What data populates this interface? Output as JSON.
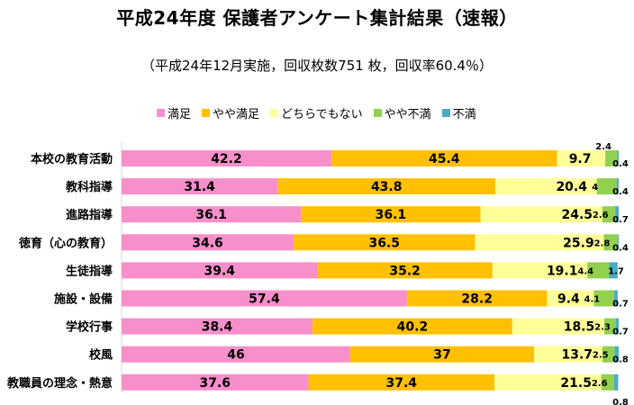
{
  "chart_data": {
    "type": "bar",
    "orientation": "horizontal",
    "stacked": true,
    "title": "平成24年度  保護者アンケート集計結果（速報）",
    "subtitle": "（平成24年12月実施，回収枚数751 枚，回収率60.4％）",
    "legend_position": "top",
    "xlim": [
      0,
      100
    ],
    "categories": [
      "本校の教育活動",
      "教科指導",
      "進路指導",
      "徳育（心の教育）",
      "生徒指導",
      "施設・設備",
      "学校行事",
      "校風",
      "教職員の理念・熱意"
    ],
    "series": [
      {
        "name": "満足",
        "color": "#f78fcb",
        "values": [
          42.2,
          31.4,
          36.1,
          34.6,
          39.4,
          57.4,
          38.4,
          46,
          37.6
        ]
      },
      {
        "name": "やや満足",
        "color": "#ffc000",
        "values": [
          45.4,
          43.8,
          36.1,
          36.5,
          35.2,
          28.2,
          40.2,
          37,
          37.4
        ]
      },
      {
        "name": "どちらでもない",
        "color": "#ffff99",
        "values": [
          9.7,
          20.4,
          24.5,
          25.9,
          19.1,
          9.4,
          18.5,
          13.7,
          21.5
        ]
      },
      {
        "name": "やや不満",
        "color": "#92d050",
        "values": [
          2.4,
          4,
          2.6,
          2.8,
          4.4,
          4.1,
          2.3,
          2.5,
          2.6
        ]
      },
      {
        "name": "不満",
        "color": "#4bacc6",
        "values": [
          0.4,
          0.4,
          0.7,
          0.4,
          1.7,
          0.7,
          0.7,
          0.8,
          0.8
        ]
      }
    ],
    "labels": [
      [
        "42.2",
        "45.4",
        "9.7",
        "2.4",
        "0.4"
      ],
      [
        "31.4",
        "43.8",
        "20.4",
        "4",
        "0.4"
      ],
      [
        "36.1",
        "36.1",
        "24.5",
        "2.6",
        "0.7"
      ],
      [
        "34.6",
        "36.5",
        "25.9",
        "2.8",
        "0.4"
      ],
      [
        "39.4",
        "35.2",
        "19.1",
        "4.4",
        "1.7"
      ],
      [
        "57.4",
        "28.2",
        "9.4",
        "4.1",
        "0.7"
      ],
      [
        "38.4",
        "40.2",
        "18.5",
        "2.3",
        "0.7"
      ],
      [
        "46",
        "37",
        "13.7",
        "2.5",
        "0.8"
      ],
      [
        "37.6",
        "37.4",
        "21.5",
        "2.6",
        "0.8"
      ]
    ]
  }
}
